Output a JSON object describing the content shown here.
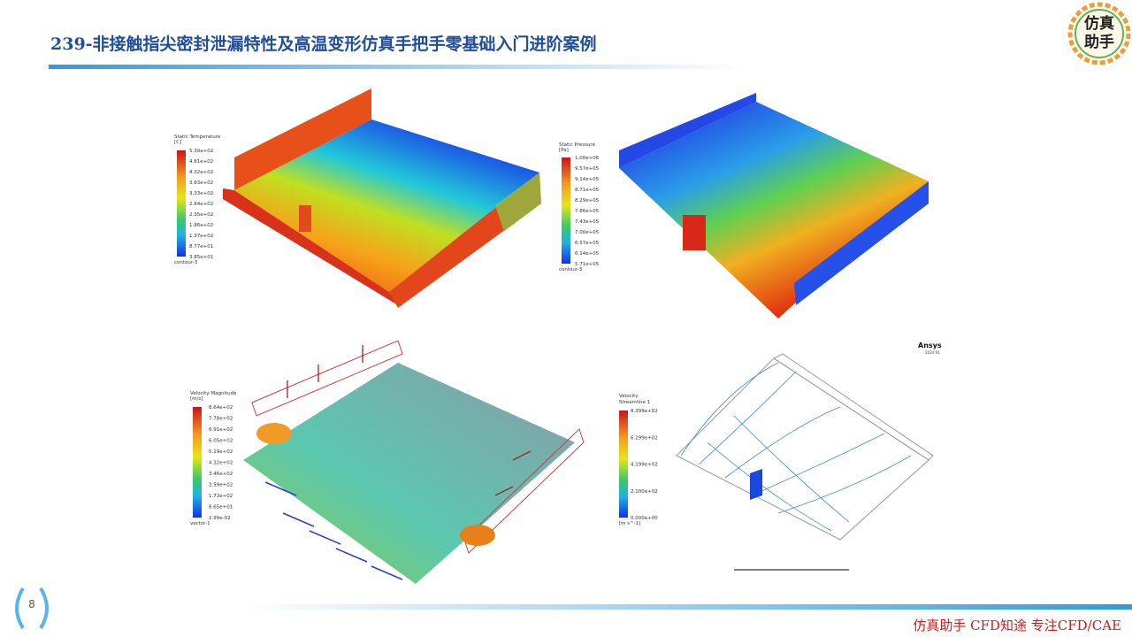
{
  "header": {
    "title": "239-非接触指尖密封泄漏特性及高温变形仿真手把手零基础入门进阶案例",
    "logo": [
      "仿真",
      "助手"
    ]
  },
  "panels": [
    {
      "legend": {
        "title": "Static Temperature",
        "unit": "[C]",
        "labels": [
          "5.30e+02",
          "4.81e+02",
          "4.32e+02",
          "3.83e+02",
          "3.33e+02",
          "2.84e+02",
          "2.35e+02",
          "1.86e+02",
          "1.37e+02",
          "8.77e+01",
          "3.85e+01"
        ],
        "footer": "contour-3"
      }
    },
    {
      "legend": {
        "title": "Static Pressure",
        "unit": "[Pa]",
        "labels": [
          "1.00e+06",
          "9.57e+05",
          "9.14e+05",
          "8.71e+05",
          "8.29e+05",
          "7.86e+05",
          "7.43e+05",
          "7.00e+05",
          "6.57e+05",
          "6.14e+05",
          "5.71e+05"
        ],
        "footer": "contour-3"
      }
    },
    {
      "legend": {
        "title": "Velocity Magnitude",
        "unit": "[m/s]",
        "labels": [
          "8.64e+02",
          "7.78e+02",
          "6.91e+02",
          "6.05e+02",
          "5.19e+02",
          "4.32e+02",
          "3.46e+02",
          "2.59e+02",
          "1.73e+02",
          "8.65e+01",
          "2.99e-02"
        ],
        "footer": "vector-1"
      }
    },
    {
      "legend": {
        "title": "Velocity",
        "subtitle": "Streamline 1",
        "labels": [
          "8.399e+02",
          "6.299e+02",
          "4.199e+02",
          "2.100e+02",
          "0.000e+00"
        ],
        "footer": "[m s^-1]"
      },
      "brand": "Ansys",
      "version": "2024 R1"
    }
  ],
  "page_number": "8",
  "footer": "仿真助手 CFD知途 专注CFD/CAE"
}
